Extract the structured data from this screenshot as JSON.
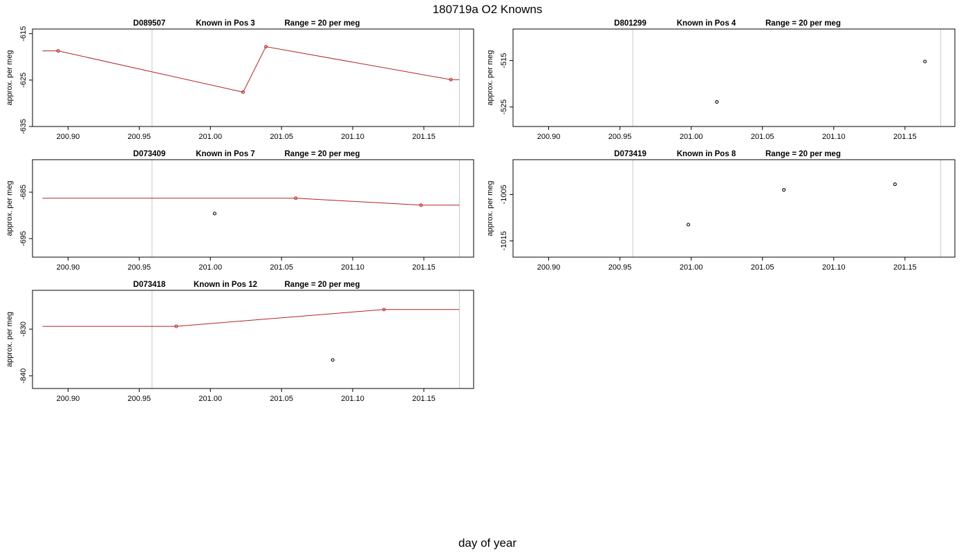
{
  "figure": {
    "title": "180719a   O2 Knowns",
    "xlabel": "day of year"
  },
  "chart_data": [
    {
      "type": "line",
      "id": "D089507",
      "title_id": "D089507",
      "title_pos": "Known in Pos 3",
      "title_range": "Range = 20 per meg",
      "ylabel": "approx. per meg",
      "xlim": [
        200.875,
        201.185
      ],
      "ylim": [
        -635,
        -614
      ],
      "xticks": [
        "200.90",
        "200.95",
        "201.00",
        "201.05",
        "201.10",
        "201.15"
      ],
      "yticks": [
        "-615",
        "-625",
        "-635"
      ],
      "vlines": [
        200.959,
        201.175
      ],
      "line_x": [
        200.882,
        200.893,
        201.023,
        201.039,
        201.169,
        201.175
      ],
      "line_y": [
        -618.7,
        -618.7,
        -627.6,
        -617.8,
        -624.9,
        -624.9
      ],
      "red_points_x": [
        200.893,
        201.023,
        201.039,
        201.169
      ],
      "red_points_y": [
        -618.7,
        -627.6,
        -617.8,
        -624.9
      ],
      "black_points_x": [],
      "black_points_y": []
    },
    {
      "type": "scatter",
      "id": "D801299",
      "title_id": "D801299",
      "title_pos": "Known in Pos 4",
      "title_range": "Range = 20 per meg",
      "ylabel": "approx. per meg",
      "xlim": [
        200.875,
        201.185
      ],
      "ylim": [
        -529.2,
        -508.2
      ],
      "xticks": [
        "200.90",
        "200.95",
        "201.00",
        "201.05",
        "201.10",
        "201.15"
      ],
      "yticks": [
        "-515",
        "-525"
      ],
      "vlines": [
        200.959,
        201.175
      ],
      "line_x": [],
      "line_y": [],
      "red_points_x": [],
      "red_points_y": [],
      "black_points_x": [
        201.018,
        201.164
      ],
      "black_points_y": [
        -523.9,
        -515.2
      ]
    },
    {
      "type": "line",
      "id": "D073409",
      "title_id": "D073409",
      "title_pos": "Known in Pos 7",
      "title_range": "Range = 20 per meg",
      "ylabel": "approx. per meg",
      "xlim": [
        200.875,
        201.185
      ],
      "ylim": [
        -699,
        -678
      ],
      "xticks": [
        "200.90",
        "200.95",
        "201.00",
        "201.05",
        "201.10",
        "201.15"
      ],
      "yticks": [
        "-685",
        "-695"
      ],
      "vlines": [
        200.959,
        201.175
      ],
      "line_x": [
        200.882,
        201.06,
        201.148,
        201.175
      ],
      "line_y": [
        -686.3,
        -686.3,
        -687.8,
        -687.8
      ],
      "red_points_x": [
        201.06,
        201.148
      ],
      "red_points_y": [
        -686.3,
        -687.8
      ],
      "black_points_x": [
        201.003
      ],
      "black_points_y": [
        -689.6
      ]
    },
    {
      "type": "scatter",
      "id": "D073419",
      "title_id": "D073419",
      "title_pos": "Known in Pos 8",
      "title_range": "Range = 20 per meg",
      "ylabel": "approx. per meg",
      "xlim": [
        200.875,
        201.185
      ],
      "ylim": [
        -1018.5,
        -997.5
      ],
      "xticks": [
        "200.90",
        "200.95",
        "201.00",
        "201.05",
        "201.10",
        "201.15"
      ],
      "yticks": [
        "-1005",
        "-1015"
      ],
      "vlines": [
        200.959,
        201.175
      ],
      "line_x": [],
      "line_y": [],
      "red_points_x": [],
      "red_points_y": [],
      "black_points_x": [
        200.998,
        201.065,
        201.143
      ],
      "black_points_y": [
        -1011.5,
        -1004.0,
        -1002.8
      ]
    },
    {
      "type": "line",
      "id": "D073418",
      "title_id": "D073418",
      "title_pos": "Known in Pos 12",
      "title_range": "Range = 20 per meg",
      "ylabel": "approx. per meg",
      "xlim": [
        200.875,
        201.185
      ],
      "ylim": [
        -842.7,
        -821.7
      ],
      "xticks": [
        "200.90",
        "200.95",
        "201.00",
        "201.05",
        "201.10",
        "201.15"
      ],
      "yticks": [
        "-830",
        "-840"
      ],
      "vlines": [
        200.959,
        201.175
      ],
      "line_x": [
        200.882,
        200.976,
        201.122,
        201.175
      ],
      "line_y": [
        -829.4,
        -829.4,
        -825.8,
        -825.8
      ],
      "red_points_x": [
        200.976,
        201.122
      ],
      "red_points_y": [
        -829.4,
        -825.8
      ],
      "black_points_x": [
        201.086
      ],
      "black_points_y": [
        -836.6
      ]
    }
  ],
  "colors": {
    "line": "#b22222",
    "red_point": "#b22222",
    "black_point": "#000000",
    "vline": "#c8c8c8",
    "box": "#000000"
  }
}
